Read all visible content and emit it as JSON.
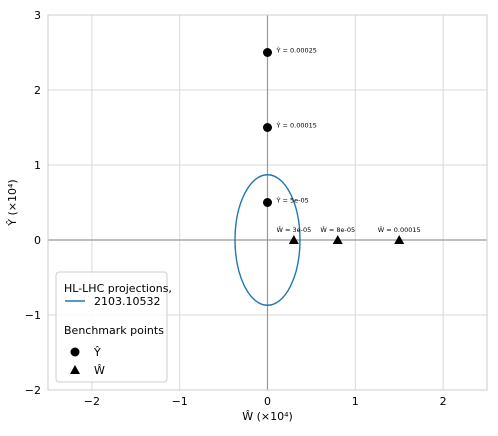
{
  "chart_data": {
    "type": "scatter",
    "xlabel": "Ŵ (×10⁴)",
    "ylabel": "Ŷ (×10⁴)",
    "xlim": [
      -2.5,
      2.5
    ],
    "ylim": [
      -2,
      3
    ],
    "xticks": [
      "−2",
      "−1",
      "0",
      "1",
      "2"
    ],
    "yticks": [
      "−2",
      "−1",
      "0",
      "1",
      "2",
      "3"
    ],
    "xtick_values": [
      -2,
      -1,
      0,
      1,
      2
    ],
    "ytick_values": [
      -2,
      -1,
      0,
      1,
      2,
      3
    ],
    "grid": true,
    "ellipse": {
      "name": "HL-LHC projections, 2103.10532",
      "center": [
        0,
        0
      ],
      "semi_axis_x": 0.37,
      "semi_axis_y": 0.87,
      "color": "#1f77b4"
    },
    "series": [
      {
        "name": "Ŷ",
        "marker": "circle",
        "x": [
          0,
          0,
          0
        ],
        "y": [
          2.5,
          1.5,
          0.5
        ],
        "labels": [
          "Ŷ = 0.00025",
          "Ŷ = 0.00015",
          "Ŷ = 5e-05"
        ]
      },
      {
        "name": "Ŵ",
        "marker": "triangle",
        "x": [
          0.3,
          0.8,
          1.5
        ],
        "y": [
          0,
          0,
          0
        ],
        "labels": [
          "Ŵ = 3e-05",
          "Ŵ = 8e-05",
          "Ŵ = 0.00015"
        ]
      }
    ],
    "legend": {
      "placement": "lower-left",
      "line_entry": [
        "HL-LHC projections,",
        "2103.10532"
      ],
      "section_title": "Benchmark points",
      "marker_entries": [
        "Ŷ",
        "Ŵ"
      ]
    }
  }
}
